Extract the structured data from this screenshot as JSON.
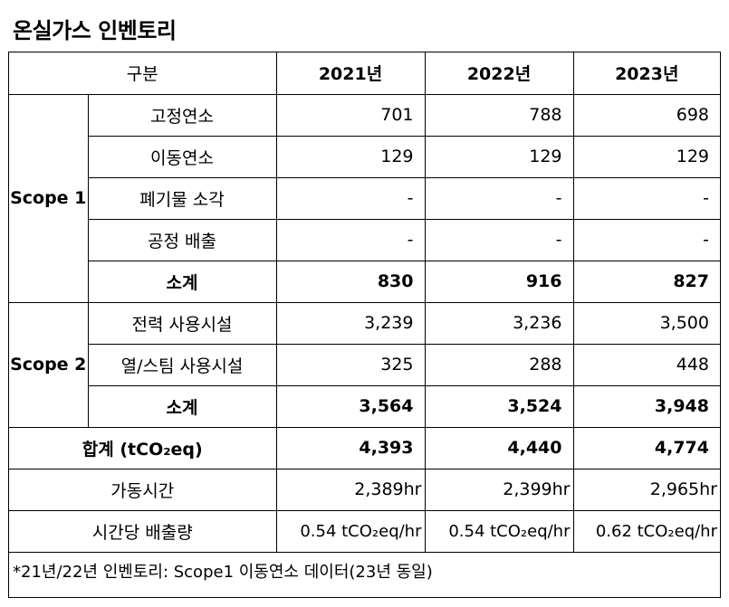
{
  "title": "온실가스 인벤토리",
  "header": {
    "category": "구분",
    "years": [
      "2021년",
      "2022년",
      "2023년"
    ]
  },
  "scope1": {
    "label": "Scope 1",
    "rows": [
      {
        "name": "고정연소",
        "values": [
          "701",
          "788",
          "698"
        ]
      },
      {
        "name": "이동연소",
        "values": [
          "129",
          "129",
          "129"
        ]
      },
      {
        "name": "폐기물 소각",
        "values": [
          "-",
          "-",
          "-"
        ]
      },
      {
        "name": "공정 배출",
        "values": [
          "-",
          "-",
          "-"
        ]
      }
    ],
    "subtotal": {
      "name": "소계",
      "values": [
        "830",
        "916",
        "827"
      ]
    }
  },
  "scope2": {
    "label": "Scope 2",
    "rows": [
      {
        "name": "전력 사용시설",
        "values": [
          "3,239",
          "3,236",
          "3,500"
        ]
      },
      {
        "name": "열/스팀 사용시설",
        "values": [
          "325",
          "288",
          "448"
        ]
      }
    ],
    "subtotal": {
      "name": "소계",
      "values": [
        "3,564",
        "3,524",
        "3,948"
      ]
    }
  },
  "total": {
    "name": "합계 (tCO₂eq)",
    "values": [
      "4,393",
      "4,440",
      "4,774"
    ]
  },
  "operating_hours": {
    "name": "가동시간",
    "values": [
      "2,389hr",
      "2,399hr",
      "2,965hr"
    ]
  },
  "hourly_emission": {
    "name": "시간당 배출량",
    "values": [
      "0.54 tCO₂eq/hr",
      "0.54 tCO₂eq/hr",
      "0.62 tCO₂eq/hr"
    ]
  },
  "footnote": "*21년/22년 인벤토리: Scope1 이동연소 데이터(23년 동일)"
}
